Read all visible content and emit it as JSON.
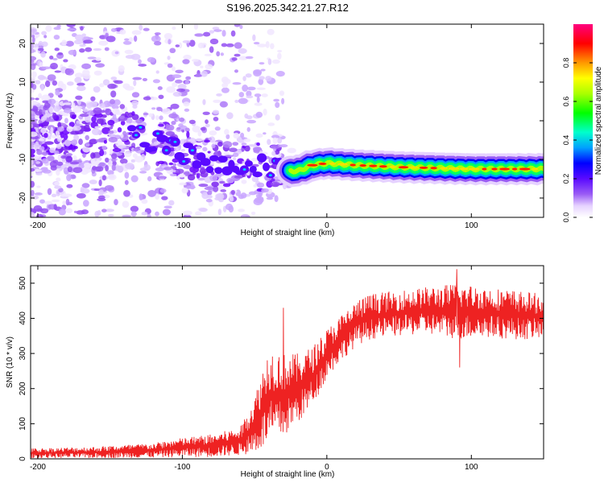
{
  "title": "S196.2025.342.21.27.R12",
  "chart_data": [
    {
      "type": "heatmap",
      "xlabel": "Height of straight line (km)",
      "ylabel": "Frequency (Hz)",
      "xlim": [
        -205,
        150
      ],
      "ylim": [
        -25,
        25
      ],
      "xticks": [
        -200,
        -100,
        0,
        100
      ],
      "xticks_labels": [
        "-200",
        "-100",
        "0",
        "100"
      ],
      "yticks": [
        20,
        10,
        0,
        -10,
        -20
      ],
      "yticks_labels": [
        "20",
        "10",
        "0",
        "-10",
        "-20"
      ],
      "ridge": {
        "description": "dominant spectral line",
        "points": [
          {
            "x": -130,
            "y": -4
          },
          {
            "x": -100,
            "y": -8
          },
          {
            "x": -80,
            "y": -11
          },
          {
            "x": -60,
            "y": -12
          },
          {
            "x": -40,
            "y": -12
          },
          {
            "x": -30,
            "y": -13
          },
          {
            "x": -20,
            "y": -13
          },
          {
            "x": -10,
            "y": -11.5
          },
          {
            "x": 0,
            "y": -11
          },
          {
            "x": 20,
            "y": -11.5
          },
          {
            "x": 50,
            "y": -12
          },
          {
            "x": 100,
            "y": -12.5
          },
          {
            "x": 150,
            "y": -12.5
          }
        ]
      },
      "colorbar": {
        "label": "Normalized spectral amplitude",
        "range": [
          0,
          1
        ],
        "ticks": [
          0.0,
          0.2,
          0.4,
          0.6,
          0.8
        ],
        "ticks_labels": [
          "0.0",
          "0.2",
          "0.4",
          "0.6",
          "0.8"
        ]
      }
    },
    {
      "type": "line",
      "xlabel": "Height of straight line (km)",
      "ylabel": "SNR (10 * v/v)",
      "xlim": [
        -205,
        150
      ],
      "ylim": [
        0,
        550
      ],
      "xticks": [
        -200,
        -100,
        0,
        100
      ],
      "xticks_labels": [
        "-200",
        "-100",
        "0",
        "100"
      ],
      "yticks": [
        0,
        100,
        200,
        300,
        400,
        500
      ],
      "yticks_labels": [
        "0",
        "100",
        "200",
        "300",
        "400",
        "500"
      ],
      "series": [
        {
          "name": "SNR",
          "color": "#ee2222",
          "envelope": [
            {
              "x": -205,
              "low": 2,
              "high": 30
            },
            {
              "x": -160,
              "low": 2,
              "high": 35
            },
            {
              "x": -120,
              "low": 3,
              "high": 45
            },
            {
              "x": -100,
              "low": 5,
              "high": 60
            },
            {
              "x": -80,
              "low": 5,
              "high": 70
            },
            {
              "x": -60,
              "low": 10,
              "high": 90
            },
            {
              "x": -50,
              "low": 15,
              "high": 180
            },
            {
              "x": -40,
              "low": 40,
              "high": 320
            },
            {
              "x": -30,
              "low": 60,
              "high": 300
            },
            {
              "x": -20,
              "low": 100,
              "high": 300
            },
            {
              "x": -10,
              "low": 150,
              "high": 320
            },
            {
              "x": 0,
              "low": 230,
              "high": 370
            },
            {
              "x": 10,
              "low": 280,
              "high": 410
            },
            {
              "x": 20,
              "low": 320,
              "high": 450
            },
            {
              "x": 30,
              "low": 340,
              "high": 470
            },
            {
              "x": 50,
              "low": 350,
              "high": 480
            },
            {
              "x": 70,
              "low": 355,
              "high": 490
            },
            {
              "x": 90,
              "low": 340,
              "high": 500
            },
            {
              "x": 110,
              "low": 345,
              "high": 490
            },
            {
              "x": 130,
              "low": 340,
              "high": 480
            },
            {
              "x": 150,
              "low": 340,
              "high": 470
            }
          ],
          "spikes": [
            {
              "x": -30,
              "value": 430
            },
            {
              "x": 90,
              "value": 540
            },
            {
              "x": 92,
              "value": 260
            }
          ]
        }
      ]
    }
  ]
}
